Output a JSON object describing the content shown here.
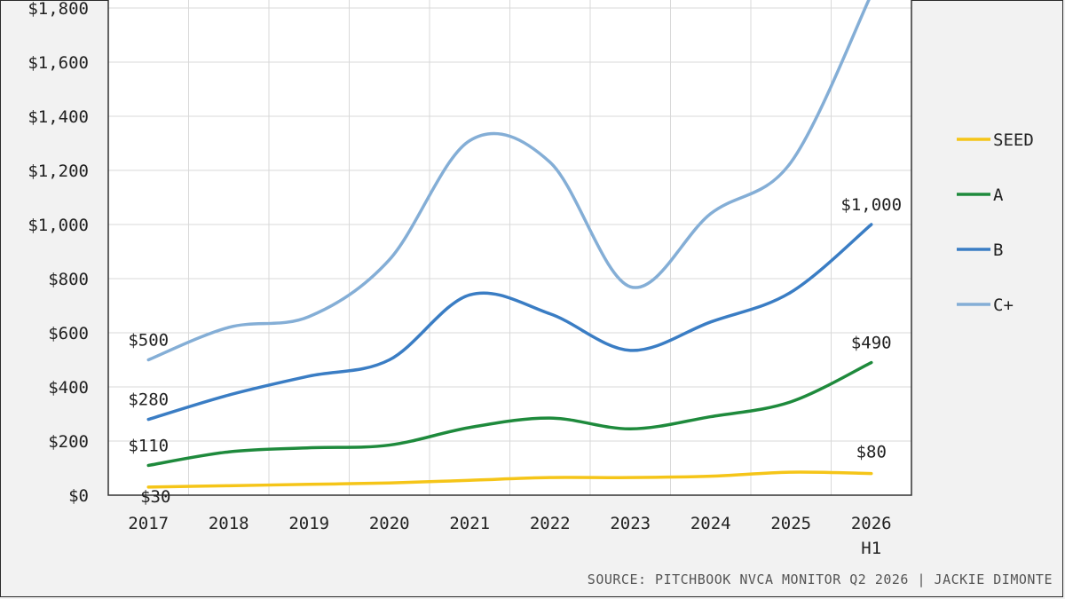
{
  "chart_data": {
    "type": "line",
    "title": "",
    "xlabel": "",
    "ylabel": "",
    "categories": [
      "2017",
      "2018",
      "2019",
      "2020",
      "2021",
      "2022",
      "2023",
      "2024",
      "2025",
      "2026\nH1"
    ],
    "ylim": [
      0,
      1800
    ],
    "yticks": [
      0,
      200,
      400,
      600,
      800,
      1000,
      1200,
      1400,
      1600,
      1800
    ],
    "ytick_labels": [
      "$0",
      "$200",
      "$400",
      "$600",
      "$800",
      "$1,000",
      "$1,200",
      "$1,400",
      "$1,600",
      "$1,800"
    ],
    "grid": true,
    "legend_position": "right",
    "series": [
      {
        "name": "SEED",
        "color": "#f5c518",
        "values": [
          30,
          35,
          40,
          45,
          55,
          65,
          65,
          70,
          85,
          80
        ]
      },
      {
        "name": "A",
        "color": "#1e8a3c",
        "values": [
          110,
          160,
          175,
          185,
          250,
          285,
          245,
          290,
          345,
          490
        ]
      },
      {
        "name": "B",
        "color": "#3a7dc4",
        "values": [
          280,
          370,
          440,
          500,
          740,
          670,
          535,
          640,
          750,
          1000
        ]
      },
      {
        "name": "C+",
        "color": "#84aed6",
        "values": [
          500,
          620,
          660,
          870,
          1310,
          1230,
          770,
          1040,
          1230,
          1850
        ]
      }
    ],
    "annotations": [
      {
        "series": "SEED",
        "index": 0,
        "text": "$30"
      },
      {
        "series": "SEED",
        "index": 9,
        "text": "$80"
      },
      {
        "series": "A",
        "index": 0,
        "text": "$110"
      },
      {
        "series": "A",
        "index": 9,
        "text": "$490"
      },
      {
        "series": "B",
        "index": 0,
        "text": "$280"
      },
      {
        "series": "B",
        "index": 9,
        "text": "$1,000"
      },
      {
        "series": "C+",
        "index": 0,
        "text": "$500"
      }
    ]
  },
  "source_text": "SOURCE: PITCHBOOK NVCA MONITOR Q2 2026 | JACKIE DIMONTE"
}
